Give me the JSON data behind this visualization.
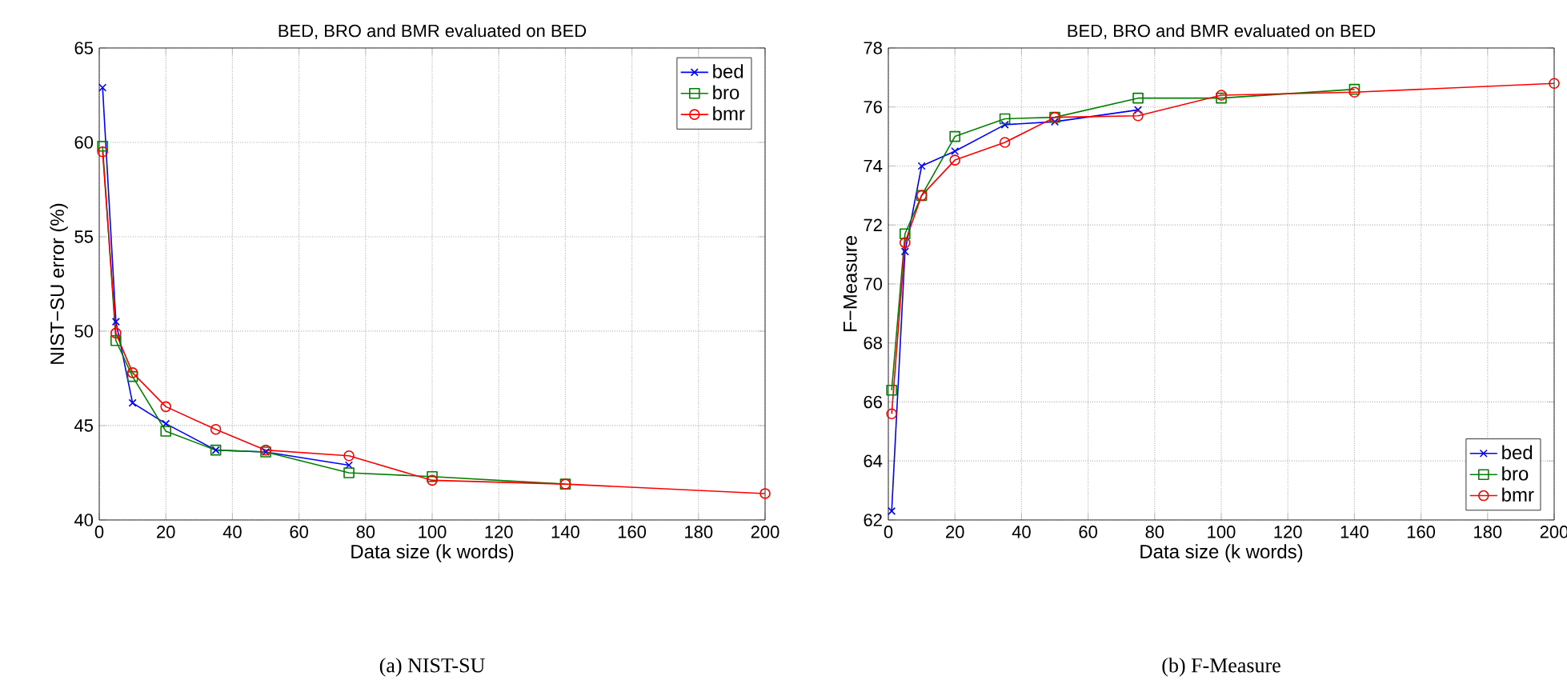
{
  "chart_data": [
    {
      "type": "line",
      "title": "BED, BRO and BMR evaluated on BED",
      "xlabel": "Data size (k words)",
      "ylabel": "NIST−SU error (%)",
      "xlim": [
        0,
        200
      ],
      "xticks": [
        0,
        20,
        40,
        60,
        80,
        100,
        120,
        140,
        160,
        180,
        200
      ],
      "ylim": [
        40,
        65
      ],
      "yticks": [
        40,
        45,
        50,
        55,
        60,
        65
      ],
      "grid": true,
      "legend": "top right",
      "annotations": [
        "(a)  NIST-SU"
      ],
      "series": [
        {
          "name": "bed",
          "color": "#0000ff",
          "marker": "cross",
          "x": [
            1,
            5,
            10,
            20,
            35,
            50,
            75
          ],
          "values": [
            62.9,
            50.5,
            46.2,
            45.1,
            43.7,
            43.6,
            42.9
          ]
        },
        {
          "name": "bro",
          "color": "#008000",
          "marker": "square",
          "x": [
            1,
            5,
            10,
            20,
            35,
            50,
            75,
            100,
            140
          ],
          "values": [
            59.8,
            49.5,
            47.6,
            44.7,
            43.7,
            43.6,
            42.5,
            42.3,
            41.9
          ]
        },
        {
          "name": "bmr",
          "color": "#ff0000",
          "marker": "circle",
          "x": [
            1,
            5,
            10,
            20,
            35,
            50,
            75,
            100,
            140,
            200
          ],
          "values": [
            59.5,
            49.9,
            47.8,
            46.0,
            44.8,
            43.7,
            43.4,
            42.1,
            41.9,
            41.4
          ]
        }
      ]
    },
    {
      "type": "line",
      "title": "BED, BRO and BMR evaluated on BED",
      "xlabel": "Data size (k words)",
      "ylabel": "F−Measure",
      "xlim": [
        0,
        200
      ],
      "xticks": [
        0,
        20,
        40,
        60,
        80,
        100,
        120,
        140,
        160,
        180,
        200
      ],
      "ylim": [
        62,
        78
      ],
      "yticks": [
        62,
        64,
        66,
        68,
        70,
        72,
        74,
        76,
        78
      ],
      "grid": true,
      "legend": "bottom right",
      "annotations": [
        "(b)  F-Measure"
      ],
      "series": [
        {
          "name": "bed",
          "color": "#0000ff",
          "marker": "cross",
          "x": [
            1,
            5,
            10,
            20,
            35,
            50,
            75
          ],
          "values": [
            62.3,
            71.1,
            74.0,
            74.5,
            75.4,
            75.5,
            75.9
          ]
        },
        {
          "name": "bro",
          "color": "#008000",
          "marker": "square",
          "x": [
            1,
            5,
            10,
            20,
            35,
            50,
            75,
            100,
            140
          ],
          "values": [
            66.4,
            71.7,
            73.0,
            75.0,
            75.6,
            75.65,
            76.3,
            76.3,
            76.6
          ]
        },
        {
          "name": "bmr",
          "color": "#ff0000",
          "marker": "circle",
          "x": [
            1,
            5,
            10,
            20,
            35,
            50,
            75,
            100,
            140,
            200
          ],
          "values": [
            65.6,
            71.4,
            73.0,
            74.2,
            74.8,
            75.65,
            75.7,
            76.4,
            76.5,
            76.8
          ]
        }
      ]
    }
  ]
}
